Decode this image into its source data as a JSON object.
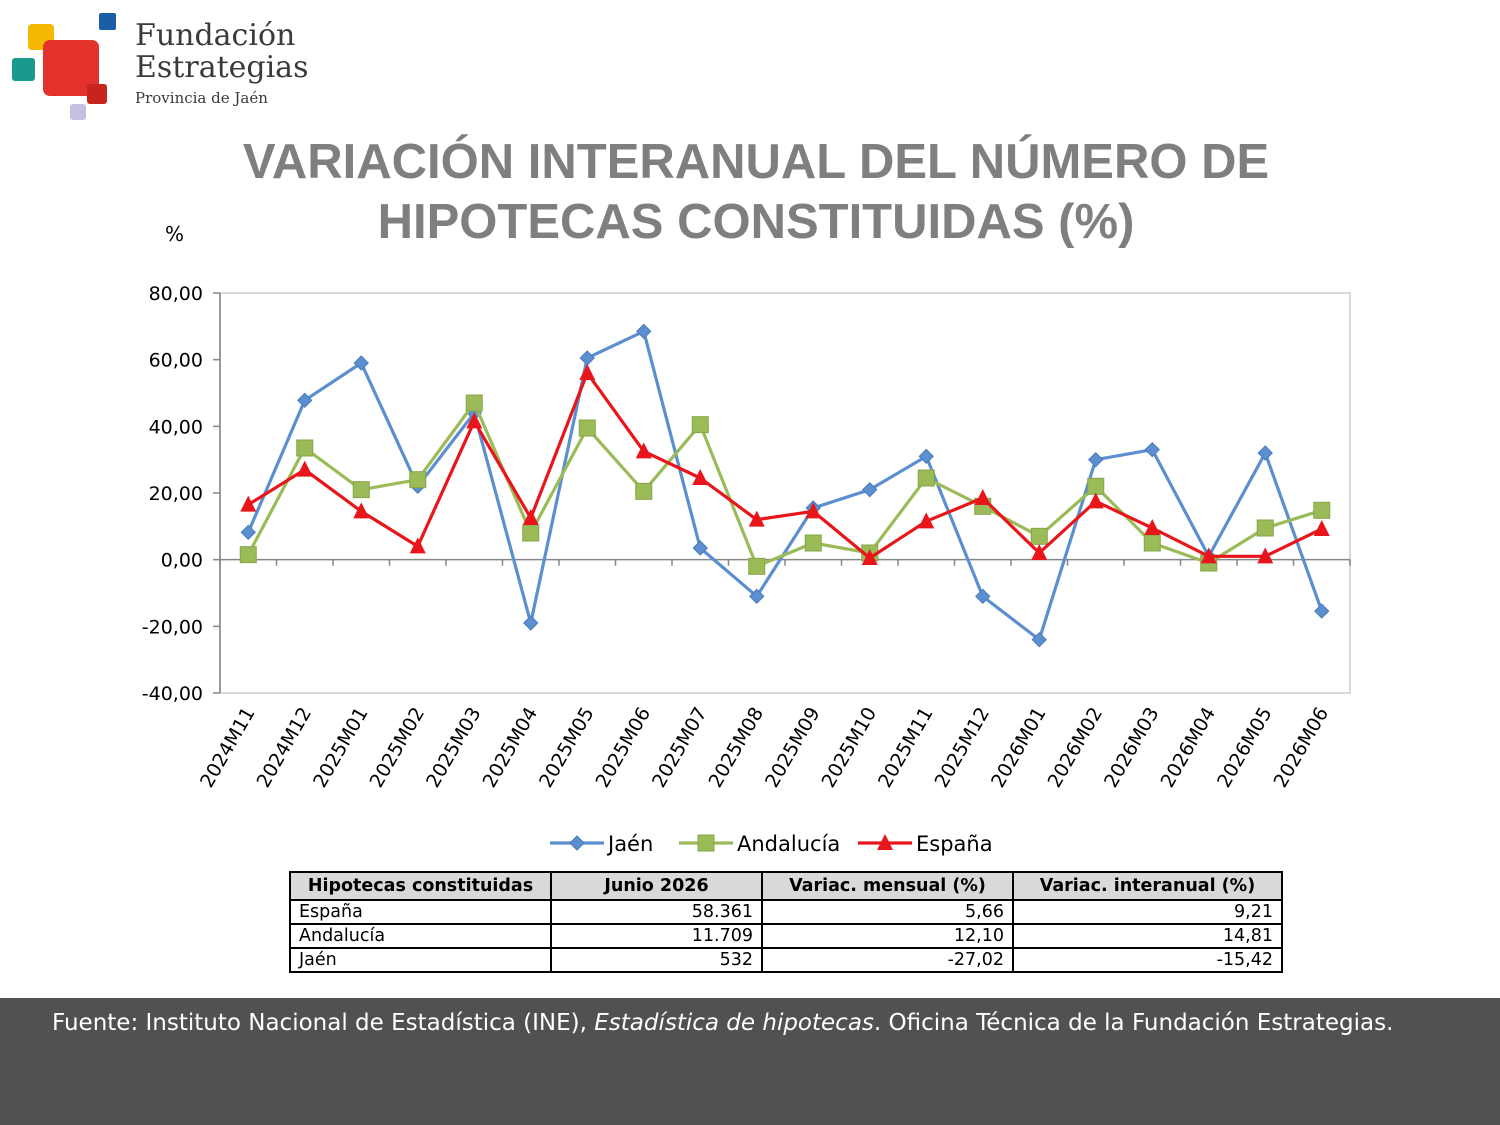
{
  "logo": {
    "line1": "Fundación",
    "line2": "Estrategias",
    "line3": "Provincia de Jaén",
    "colors": {
      "red": "#e3322b",
      "yellow": "#f5b800",
      "teal": "#1a9a8f",
      "blue": "#1b5ea8",
      "lavender": "#c5bfe0"
    }
  },
  "title": {
    "line1": "VARIACIÓN INTERANUAL DEL NÚMERO DE",
    "line2": "HIPOTECAS CONSTITUIDAS (%)"
  },
  "chart_data": {
    "type": "line",
    "ylabel": "%",
    "ylim": [
      -40,
      80
    ],
    "yticks": [
      80,
      60,
      40,
      20,
      0,
      -20,
      -40
    ],
    "ytick_labels": [
      "80,00",
      "60,00",
      "40,00",
      "20,00",
      "0,00",
      "-20,00",
      "-40,00"
    ],
    "categories": [
      "2024M11",
      "2024M12",
      "2025M01",
      "2025M02",
      "2025M03",
      "2025M04",
      "2025M05",
      "2025M06",
      "2025M07",
      "2025M08",
      "2025M09",
      "2025M10",
      "2025M11",
      "2025M12",
      "2026M01",
      "2026M02",
      "2026M03",
      "2026M04",
      "2026M05",
      "2026M06"
    ],
    "legend_position": "bottom",
    "series": [
      {
        "name": "Jaén",
        "color": "#5b8fd0",
        "marker": "diamond",
        "values": [
          8.2,
          47.8,
          59.0,
          22.0,
          44.0,
          -19.0,
          60.5,
          68.5,
          3.5,
          -11.0,
          15.5,
          21.0,
          31.0,
          -11.0,
          -24.0,
          30.0,
          33.0,
          1.0,
          32.0,
          -15.42
        ]
      },
      {
        "name": "Andalucía",
        "color": "#9bbb59",
        "marker": "square",
        "values": [
          1.5,
          33.5,
          21.0,
          24.0,
          47.0,
          8.0,
          39.5,
          20.5,
          40.5,
          -2.0,
          5.0,
          2.0,
          24.5,
          16.0,
          7.0,
          22.0,
          5.0,
          -1.0,
          9.5,
          14.81
        ]
      },
      {
        "name": "España",
        "color": "#e8161a",
        "marker": "triangle",
        "values": [
          16.5,
          27.0,
          14.5,
          4.0,
          41.5,
          12.5,
          56.0,
          32.5,
          24.5,
          12.0,
          14.5,
          0.5,
          11.5,
          18.5,
          2.0,
          17.5,
          9.5,
          1.0,
          1.0,
          9.21
        ]
      }
    ]
  },
  "table": {
    "headers": [
      "Hipotecas constituidas",
      "Junio 2026",
      "Variac. mensual (%)",
      "Variac. interanual (%)"
    ],
    "rows": [
      [
        "España",
        "58.361",
        "5,66",
        "9,21"
      ],
      [
        "Andalucía",
        "11.709",
        "12,10",
        "14,81"
      ],
      [
        "Jaén",
        "532",
        "-27,02",
        "-15,42"
      ]
    ]
  },
  "footer": {
    "text_before": "Fuente: Instituto Nacional de Estadística (INE), ",
    "text_italic": "Estadística de hipotecas",
    "text_after": ". Oficina Técnica de la Fundación Estrategias."
  }
}
